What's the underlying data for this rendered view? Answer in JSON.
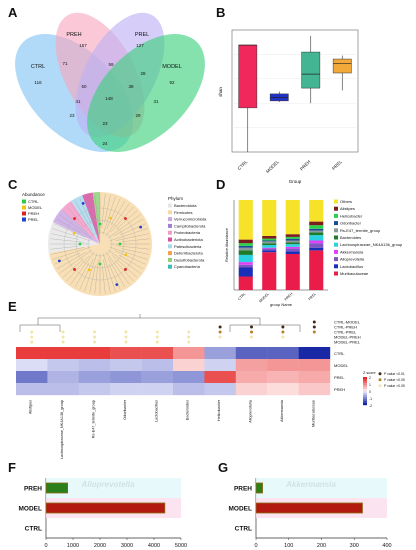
{
  "panel_letters": [
    "A",
    "B",
    "C",
    "D",
    "E",
    "F",
    "G"
  ],
  "colors": {
    "ctrl": "#80c4f2",
    "preh": "#f7a6be",
    "prel": "#bdb0f4",
    "model": "#3ad17a",
    "box_ctrl": "#f0285c",
    "box_model": "#2032c8",
    "box_preh": "#44b593",
    "box_prel": "#f2a93a",
    "bar_dark": "#b21a10",
    "bar_green": "#2a7f1a",
    "bar_edge": "#8b6914"
  },
  "chart_data": [
    {
      "panel": "A",
      "type": "venn",
      "sets": [
        "CTRL",
        "PREH",
        "PREL",
        "MODEL"
      ],
      "regions": [
        {
          "sets": [
            "CTRL"
          ],
          "value": "116"
        },
        {
          "sets": [
            "PREH"
          ],
          "value": "157"
        },
        {
          "sets": [
            "PREL"
          ],
          "value": "127"
        },
        {
          "sets": [
            "MODEL"
          ],
          "value": "92"
        },
        {
          "sets": [
            "CTRL",
            "PREH"
          ],
          "value": "71"
        },
        {
          "sets": [
            "PREH",
            "PREL"
          ],
          "value": "59"
        },
        {
          "sets": [
            "PREL",
            "MODEL"
          ],
          "value": "28"
        },
        {
          "sets": [
            "CTRL",
            "PREL"
          ],
          "value": "41"
        },
        {
          "sets": [
            "PREH",
            "MODEL"
          ],
          "value": "31"
        },
        {
          "sets": [
            "CTRL",
            "PREH",
            "PREL"
          ],
          "value": "50"
        },
        {
          "sets": [
            "PREH",
            "PREL",
            "MODEL"
          ],
          "value": "38"
        },
        {
          "sets": [
            "CTRL",
            "PREH",
            "PREL",
            "MODEL"
          ],
          "value": "148"
        },
        {
          "sets": [
            "CTRL",
            "PREL",
            "MODEL"
          ],
          "value": "23"
        },
        {
          "sets": [
            "PREH",
            "PREL",
            "MODEL",
            "x"
          ],
          "value": "29"
        },
        {
          "sets": [
            "CTRL",
            "MODEL"
          ],
          "value": "23"
        },
        {
          "sets": [
            "CTRL",
            "PREH",
            "MODEL"
          ],
          "value": "24"
        }
      ]
    },
    {
      "panel": "B",
      "type": "boxplot",
      "ylabel": "shan",
      "xlabel": "Group",
      "categories": [
        "CTRL",
        "MODEL",
        "PREH",
        "PREL"
      ],
      "boxes": [
        {
          "min": 0.0,
          "q1": 0.38,
          "median": 0.92,
          "q3": 0.92,
          "max": 0.92
        },
        {
          "min": 0.43,
          "q1": 0.44,
          "median": 0.47,
          "q3": 0.5,
          "max": 0.52
        },
        {
          "min": 0.42,
          "q1": 0.55,
          "median": 0.67,
          "q3": 0.86,
          "max": 1.0
        },
        {
          "min": 0.53,
          "q1": 0.68,
          "median": 0.76,
          "q3": 0.8,
          "max": 0.83
        }
      ],
      "ylim": [
        0,
        1.05
      ]
    },
    {
      "panel": "C",
      "type": "cladogram",
      "abundance_title": "Abundance",
      "abundance_legend": [
        {
          "name": "CTRL",
          "color": "#2ecc40"
        },
        {
          "name": "MODEL",
          "color": "#f1c40f"
        },
        {
          "name": "PREH",
          "color": "#e02020"
        },
        {
          "name": "PREL",
          "color": "#2040d0"
        }
      ],
      "phylum_title": "Phylum",
      "phylum_legend": [
        {
          "name": "Bacteroidota",
          "color": "#e6e6e6"
        },
        {
          "name": "Firmicutes",
          "color": "#f7d9a8"
        },
        {
          "name": "Verrucomicrobiota",
          "color": "#c9a7e3"
        },
        {
          "name": "Campilobacterota",
          "color": "#a080d0"
        },
        {
          "name": "Proteobacteria",
          "color": "#f59ac8"
        },
        {
          "name": "Actinobacteriota",
          "color": "#d64fa0"
        },
        {
          "name": "Patescibacteria",
          "color": "#a8d8ef"
        },
        {
          "name": "Deferribacterota",
          "color": "#f6a04a"
        },
        {
          "name": "Desulfobacterota",
          "color": "#8fd07a"
        },
        {
          "name": "Cyanobacteria",
          "color": "#3fb9c0"
        }
      ]
    },
    {
      "panel": "D",
      "type": "stacked-bar",
      "ylabel": "Relative Abundance",
      "xlabel": "group Name",
      "categories": [
        "CTRL",
        "MODEL",
        "PREH",
        "PREL"
      ],
      "legend": [
        "Others",
        "Alistipes",
        "Helicobacter",
        "Odoribacter",
        "Rs-E47_termite_group",
        "Bacteroides",
        "Lachnospiraceae_NK4A136_group",
        "Akkermansia",
        "Alloprevotella",
        "Lactobacillus",
        "Muribaculaceae"
      ],
      "series": [
        {
          "name": "Muribaculaceae",
          "color": "#ea1d4a",
          "values": [
            0.15,
            0.42,
            0.4,
            0.44
          ]
        },
        {
          "name": "Lactobacillus",
          "color": "#1a2fb8",
          "values": [
            0.1,
            0.02,
            0.03,
            0.03
          ]
        },
        {
          "name": "Alloprevotella",
          "color": "#7e57c2",
          "values": [
            0.03,
            0.02,
            0.03,
            0.05
          ]
        },
        {
          "name": "Akkermansia",
          "color": "#e040fb",
          "values": [
            0.03,
            0.01,
            0.02,
            0.03
          ]
        },
        {
          "name": "Lachnospiraceae_NK4A136_group",
          "color": "#2ad1e0",
          "values": [
            0.08,
            0.03,
            0.03,
            0.06
          ]
        },
        {
          "name": "Bacteroides",
          "color": "#1f7a2a",
          "values": [
            0.05,
            0.02,
            0.02,
            0.03
          ]
        },
        {
          "name": "Rs-E47_termite_group",
          "color": "#8a9a9a",
          "values": [
            0.03,
            0.02,
            0.02,
            0.02
          ]
        },
        {
          "name": "Odoribacter",
          "color": "#1e4a9a",
          "values": [
            0.02,
            0.01,
            0.02,
            0.02
          ]
        },
        {
          "name": "Helicobacter",
          "color": "#2ad24a",
          "values": [
            0.03,
            0.02,
            0.02,
            0.04
          ]
        },
        {
          "name": "Alistipes",
          "color": "#7a1d1d",
          "values": [
            0.04,
            0.03,
            0.03,
            0.04
          ]
        },
        {
          "name": "Others",
          "color": "#f7e22a",
          "values": [
            0.44,
            0.4,
            0.38,
            0.24
          ]
        }
      ],
      "ylim": [
        0,
        1
      ]
    },
    {
      "panel": "E",
      "type": "heatmap",
      "columns": [
        "Alistipes",
        "Lachnospiraceae_NK4A136_group",
        "Rs-E47_termite_group",
        "Odoribacter",
        "Lactobacillus",
        "Bacteroides",
        "Helicobacter",
        "Alloprevotella",
        "Akkermansia",
        "Muribaculaceae"
      ],
      "rows": [
        "CTRL",
        "MODEL",
        "PREL",
        "PREH"
      ],
      "values": [
        [
          1.8,
          1.8,
          1.8,
          1.6,
          1.6,
          0.9,
          -0.8,
          -1.4,
          -1.4,
          -2.0
        ],
        [
          -0.2,
          -0.4,
          -0.5,
          -0.4,
          -0.5,
          0.3,
          -0.3,
          0.8,
          0.9,
          0.9
        ],
        [
          -1.2,
          -0.6,
          -0.8,
          -0.9,
          -0.8,
          -0.9,
          1.6,
          0.7,
          0.6,
          0.7
        ],
        [
          -0.5,
          -0.5,
          -0.4,
          -0.3,
          -0.3,
          -0.5,
          -0.4,
          0.3,
          0.2,
          0.4
        ]
      ],
      "comparisons": [
        "CTRL-MODEL",
        "CTRL-PREH",
        "CTRL-PREL",
        "MODEL-PREH",
        "MODEL-PREL"
      ],
      "colorbar_title": "Z score",
      "colorbar_ticks": [
        "2",
        "1",
        "0",
        "-1",
        "-2"
      ],
      "pvalue_legend": [
        {
          "label": "P value <0.01",
          "color": "#3d2a1a"
        },
        {
          "label": "P value <0.05",
          "color": "#b9812e"
        },
        {
          "label": "P value >0.05",
          "color": "#efe6a8"
        }
      ],
      "markers": [
        {
          "col": 0,
          "row": 2,
          "level": 2
        },
        {
          "col": 0,
          "row": 3,
          "level": 2
        },
        {
          "col": 0,
          "row": 4,
          "level": 2
        },
        {
          "col": 1,
          "row": 2,
          "level": 2
        },
        {
          "col": 1,
          "row": 3,
          "level": 2
        },
        {
          "col": 1,
          "row": 4,
          "level": 2
        },
        {
          "col": 2,
          "row": 2,
          "level": 2
        },
        {
          "col": 2,
          "row": 3,
          "level": 2
        },
        {
          "col": 2,
          "row": 4,
          "level": 2
        },
        {
          "col": 3,
          "row": 2,
          "level": 2
        },
        {
          "col": 3,
          "row": 3,
          "level": 2
        },
        {
          "col": 3,
          "row": 4,
          "level": 2
        },
        {
          "col": 4,
          "row": 2,
          "level": 2
        },
        {
          "col": 4,
          "row": 3,
          "level": 2
        },
        {
          "col": 4,
          "row": 4,
          "level": 2
        },
        {
          "col": 5,
          "row": 2,
          "level": 2
        },
        {
          "col": 5,
          "row": 3,
          "level": 2
        },
        {
          "col": 5,
          "row": 4,
          "level": 2
        },
        {
          "col": 6,
          "row": 1,
          "level": 0
        },
        {
          "col": 6,
          "row": 2,
          "level": 1
        },
        {
          "col": 6,
          "row": 3,
          "level": 2
        },
        {
          "col": 7,
          "row": 1,
          "level": 0
        },
        {
          "col": 7,
          "row": 2,
          "level": 1
        },
        {
          "col": 7,
          "row": 3,
          "level": 2
        },
        {
          "col": 8,
          "row": 1,
          "level": 0
        },
        {
          "col": 8,
          "row": 2,
          "level": 1
        },
        {
          "col": 8,
          "row": 3,
          "level": 2
        },
        {
          "col": 9,
          "row": 0,
          "level": 0
        },
        {
          "col": 9,
          "row": 1,
          "level": 0
        },
        {
          "col": 9,
          "row": 2,
          "level": 1
        }
      ]
    },
    {
      "panel": "F",
      "type": "bar",
      "orientation": "horizontal",
      "title": "Alloprevotella",
      "categories": [
        "PREH",
        "MODEL",
        "CTRL"
      ],
      "values": [
        800,
        4400,
        0
      ],
      "xticks": [
        "0",
        "1000",
        "2000",
        "3000",
        "4000",
        "5000"
      ],
      "xlim": [
        0,
        5000
      ]
    },
    {
      "panel": "G",
      "type": "bar",
      "orientation": "horizontal",
      "title": "Akkermansia",
      "categories": [
        "PREH",
        "MODEL",
        "CTRL"
      ],
      "values": [
        20,
        325,
        0
      ],
      "xticks": [
        "0",
        "100",
        "200",
        "300",
        "400"
      ],
      "xlim": [
        0,
        400
      ]
    }
  ]
}
